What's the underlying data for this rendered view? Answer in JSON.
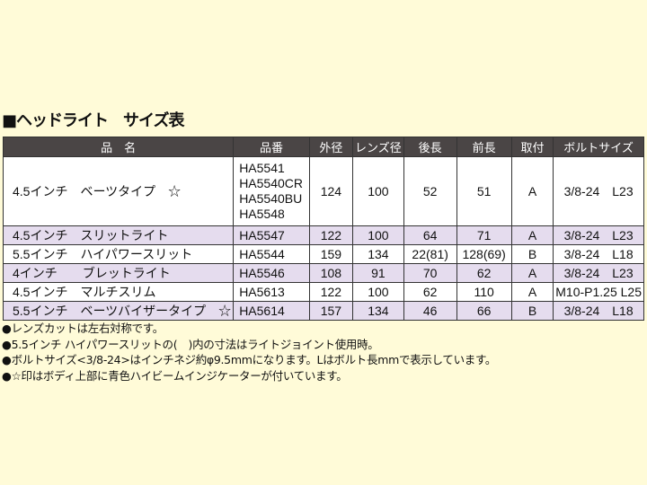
{
  "title": "■ヘッドライト　サイズ表",
  "headers": [
    "品　名",
    "品番",
    "外径",
    "レンズ径",
    "後長",
    "前長",
    "取付",
    "ボルトサイズ"
  ],
  "rows": [
    {
      "name": "4.5インチ　ベーツタイプ　☆",
      "part": [
        "HA5541",
        "HA5540CR",
        "HA5540BU",
        "HA5548"
      ],
      "od": "124",
      "lens": "100",
      "rear": "52",
      "front": "51",
      "mount": "A",
      "bolt": "3/8-24　L23"
    },
    {
      "name": "4.5インチ　スリットライト",
      "part": [
        "HA5547"
      ],
      "od": "122",
      "lens": "100",
      "rear": "64",
      "front": "71",
      "mount": "A",
      "bolt": "3/8-24　L23"
    },
    {
      "name": "5.5インチ　ハイパワースリット",
      "part": [
        "HA5544"
      ],
      "od": "159",
      "lens": "134",
      "rear": "22(81)",
      "front": "128(69)",
      "mount": "B",
      "bolt": "3/8-24　L18"
    },
    {
      "name": "4インチ　　ブレットライト",
      "part": [
        "HA5546"
      ],
      "od": "108",
      "lens": "91",
      "rear": "70",
      "front": "62",
      "mount": "A",
      "bolt": "3/8-24　L23"
    },
    {
      "name": "4.5インチ　マルチスリム",
      "part": [
        "HA5613"
      ],
      "od": "122",
      "lens": "100",
      "rear": "62",
      "front": "110",
      "mount": "A",
      "bolt": "M10-P1.25 L25"
    },
    {
      "name": "5.5インチ　ベーツバイザータイプ　☆",
      "part": [
        "HA5614"
      ],
      "od": "157",
      "lens": "134",
      "rear": "46",
      "front": "66",
      "mount": "B",
      "bolt": "3/8-24　L18"
    }
  ],
  "notes": [
    "●レンズカットは左右対称です。",
    "●5.5インチ ハイパワースリットの(　)内の寸法はライトジョイント使用時。",
    "●ボルトサイズ<3/8-24>はインチネジ約φ9.5mmになります。Lはボルト長mmで表示しています。",
    "●☆印はボディ上部に青色ハイビームインジケーターが付いています。"
  ],
  "colors": {
    "header_bg": "#4a4545",
    "alt_row": "#e5dcee",
    "page_bg": "#fffbd8"
  }
}
